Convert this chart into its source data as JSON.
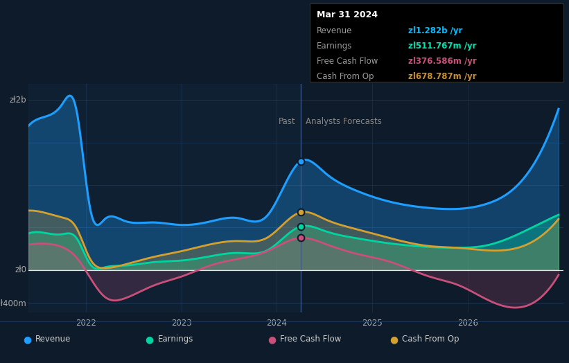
{
  "bg_color": "#0d1b2a",
  "plot_bg": "#0d1b2a",
  "grid_color": "#1e3a5f",
  "zero_line_color": "#ffffff",
  "divider_color": "#3a5a8a",
  "past_x": 2024.25,
  "ylim": [
    -500000000,
    2200000000
  ],
  "xlim": [
    2021.4,
    2027.0
  ],
  "xticks": [
    2022,
    2023,
    2024,
    2025,
    2026
  ],
  "tooltip": {
    "date": "Mar 31 2024",
    "revenue_label": "Revenue",
    "revenue_value": "zl1.282b /yr",
    "earnings_label": "Earnings",
    "earnings_value": "zl511.767m /yr",
    "fcf_label": "Free Cash Flow",
    "fcf_value": "zl376.586m /yr",
    "cashop_label": "Cash From Op",
    "cashop_value": "zl678.787m /yr",
    "revenue_color": "#00bfff",
    "earnings_color": "#00e5b0",
    "fcf_color": "#c8507a",
    "cashop_color": "#c89030"
  },
  "revenue_color": "#1e9fff",
  "earnings_color": "#00d4a0",
  "fcf_color": "#c8507a",
  "cashop_color": "#d4a030",
  "legend_items": [
    {
      "label": "Revenue",
      "color": "#1e9fff"
    },
    {
      "label": "Earnings",
      "color": "#00d4a0"
    },
    {
      "label": "Free Cash Flow",
      "color": "#c8507a"
    },
    {
      "label": "Cash From Op",
      "color": "#d4a030"
    }
  ],
  "revenue_x": [
    2021.4,
    2021.55,
    2021.75,
    2021.9,
    2022.05,
    2022.2,
    2022.4,
    2022.7,
    2023.0,
    2023.3,
    2023.6,
    2023.9,
    2024.25,
    2024.5,
    2024.8,
    2025.2,
    2025.6,
    2025.9,
    2026.2,
    2026.6,
    2026.95
  ],
  "revenue_y": [
    1700000000.0,
    1800000000.0,
    1950000000.0,
    1900000000.0,
    700000000.0,
    600000000.0,
    580000000.0,
    560000000.0,
    530000000.0,
    570000000.0,
    610000000.0,
    640000000.0,
    1282000000.0,
    1150000000.0,
    950000000.0,
    800000000.0,
    730000000.0,
    720000000.0,
    780000000.0,
    1100000000.0,
    1900000000.0
  ],
  "cashop_x": [
    2021.4,
    2021.55,
    2021.75,
    2021.9,
    2022.05,
    2022.2,
    2022.4,
    2022.7,
    2023.0,
    2023.3,
    2023.6,
    2023.9,
    2024.25,
    2024.5,
    2024.8,
    2025.2,
    2025.6,
    2025.9,
    2026.2,
    2026.6,
    2026.95
  ],
  "cashop_y": [
    700000000.0,
    680000000.0,
    620000000.0,
    500000000.0,
    120000000.0,
    20000000.0,
    60000000.0,
    150000000.0,
    220000000.0,
    300000000.0,
    340000000.0,
    380000000.0,
    679000000.0,
    600000000.0,
    490000000.0,
    370000000.0,
    280000000.0,
    260000000.0,
    230000000.0,
    290000000.0,
    600000000.0
  ],
  "earnings_x": [
    2021.4,
    2021.55,
    2021.75,
    2021.9,
    2022.05,
    2022.2,
    2022.4,
    2022.7,
    2023.0,
    2023.3,
    2023.6,
    2023.9,
    2024.25,
    2024.5,
    2024.8,
    2025.2,
    2025.6,
    2025.9,
    2026.2,
    2026.6,
    2026.95
  ],
  "earnings_y": [
    430000000.0,
    440000000.0,
    420000000.0,
    380000000.0,
    60000000.0,
    30000000.0,
    50000000.0,
    90000000.0,
    110000000.0,
    160000000.0,
    200000000.0,
    230000000.0,
    512000000.0,
    460000000.0,
    380000000.0,
    310000000.0,
    270000000.0,
    260000000.0,
    290000000.0,
    460000000.0,
    650000000.0
  ],
  "fcf_x": [
    2021.4,
    2021.55,
    2021.75,
    2021.9,
    2022.05,
    2022.2,
    2022.4,
    2022.7,
    2023.0,
    2023.3,
    2023.6,
    2023.9,
    2024.25,
    2024.5,
    2024.8,
    2025.2,
    2025.6,
    2025.9,
    2026.2,
    2026.6,
    2026.95
  ],
  "fcf_y": [
    300000000.0,
    310000000.0,
    270000000.0,
    150000000.0,
    -100000000.0,
    -320000000.0,
    -340000000.0,
    -190000000.0,
    -80000000.0,
    50000000.0,
    130000000.0,
    220000000.0,
    377000000.0,
    310000000.0,
    200000000.0,
    90000000.0,
    -80000000.0,
    -180000000.0,
    -350000000.0,
    -430000000.0,
    -60000000.0
  ]
}
